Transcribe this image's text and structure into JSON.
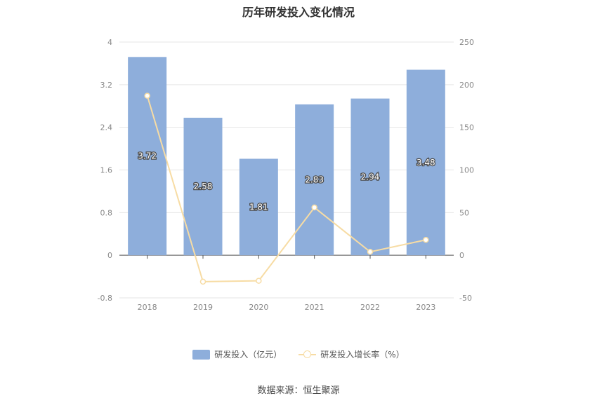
{
  "chart_data": {
    "type": "bar",
    "title": "历年研发投入变化情况",
    "categories": [
      "2018",
      "2019",
      "2020",
      "2021",
      "2022",
      "2023"
    ],
    "series": [
      {
        "name": "研发投入（亿元）",
        "type": "bar",
        "axis": "left",
        "values": [
          3.72,
          2.58,
          1.81,
          2.83,
          2.94,
          3.48
        ],
        "labels": [
          "3.72",
          "2.58",
          "1.81",
          "2.83",
          "2.94",
          "3.48"
        ],
        "color": "#8eaedb"
      },
      {
        "name": "研发投入增长率（%）",
        "type": "line",
        "axis": "right",
        "values": [
          187,
          -31,
          -30,
          56,
          4,
          18
        ],
        "color": "#f7dca4"
      }
    ],
    "y_left": {
      "min": -0.8,
      "max": 4,
      "ticks": [
        "4",
        "3.2",
        "2.4",
        "1.6",
        "0.8",
        "0",
        "-0.8"
      ]
    },
    "y_right": {
      "min": -50,
      "max": 250,
      "ticks": [
        "250",
        "200",
        "150",
        "100",
        "50",
        "0",
        "-50"
      ]
    },
    "grid": true,
    "legend_position": "bottom"
  },
  "source": "数据来源：恒生聚源",
  "colors": {
    "bar": "#8eaedb",
    "line": "#f7dca4",
    "grid": "#e6e6e6",
    "axis": "#555555"
  }
}
